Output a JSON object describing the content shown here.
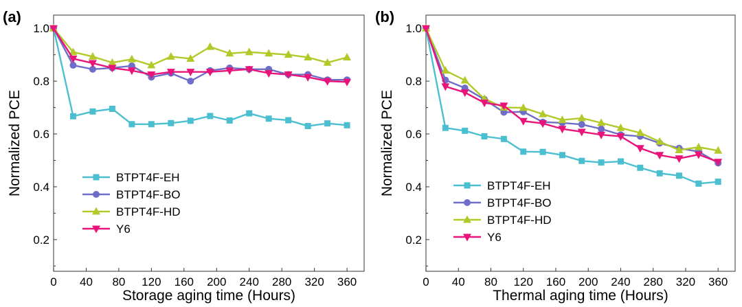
{
  "chart_data": [
    {
      "type": "line",
      "panel_label": "(a)",
      "xlabel": "Storage aging time (Hours)",
      "ylabel": "Normalized PCE",
      "xlim": [
        0,
        381
      ],
      "ylim": [
        0.08,
        1.05
      ],
      "xticks": [
        0,
        40,
        80,
        120,
        160,
        200,
        240,
        280,
        320,
        360
      ],
      "yticks": [
        0.2,
        0.4,
        0.6,
        0.8,
        1.0
      ],
      "legend_position": "bottom-left",
      "x": [
        0,
        24,
        48,
        72,
        96,
        120,
        144,
        168,
        192,
        216,
        240,
        264,
        288,
        312,
        336,
        360
      ],
      "series": [
        {
          "name": "BTPT4F-EH",
          "color": "#4bbfd0",
          "marker": "square",
          "values": [
            1.0,
            0.667,
            0.685,
            0.695,
            0.637,
            0.637,
            0.641,
            0.65,
            0.668,
            0.651,
            0.678,
            0.658,
            0.652,
            0.63,
            0.64,
            0.633
          ]
        },
        {
          "name": "BTPT4F-BO",
          "color": "#6e6ec8",
          "marker": "circle",
          "values": [
            1.0,
            0.86,
            0.845,
            0.85,
            0.858,
            0.815,
            0.83,
            0.8,
            0.84,
            0.85,
            0.845,
            0.845,
            0.825,
            0.825,
            0.805,
            0.805
          ]
        },
        {
          "name": "BTPT4F-HD",
          "color": "#b3c92a",
          "marker": "triangle-up",
          "values": [
            1.0,
            0.91,
            0.893,
            0.87,
            0.883,
            0.86,
            0.893,
            0.885,
            0.93,
            0.905,
            0.91,
            0.905,
            0.9,
            0.89,
            0.87,
            0.89
          ]
        },
        {
          "name": "Y6",
          "color": "#e8147a",
          "marker": "triangle-down",
          "values": [
            1.0,
            0.885,
            0.868,
            0.85,
            0.84,
            0.825,
            0.835,
            0.835,
            0.835,
            0.84,
            0.845,
            0.83,
            0.825,
            0.815,
            0.8,
            0.797
          ]
        }
      ]
    },
    {
      "type": "line",
      "panel_label": "(b)",
      "xlabel": "Thermal aging time (Hours)",
      "ylabel": "Normalized PCE",
      "xlim": [
        0,
        381
      ],
      "ylim": [
        0.08,
        1.05
      ],
      "xticks": [
        0,
        40,
        80,
        120,
        160,
        200,
        240,
        280,
        320,
        360
      ],
      "yticks": [
        0.2,
        0.4,
        0.6,
        0.8,
        1.0
      ],
      "legend_position": "bottom-left",
      "x": [
        0,
        24,
        48,
        72,
        96,
        120,
        144,
        168,
        192,
        216,
        240,
        264,
        288,
        312,
        336,
        360
      ],
      "series": [
        {
          "name": "BTPT4F-EH",
          "color": "#4bbfd0",
          "marker": "square",
          "values": [
            1.0,
            0.623,
            0.612,
            0.591,
            0.581,
            0.533,
            0.532,
            0.52,
            0.498,
            0.492,
            0.496,
            0.472,
            0.451,
            0.442,
            0.412,
            0.419
          ]
        },
        {
          "name": "BTPT4F-BO",
          "color": "#6e6ec8",
          "marker": "circle",
          "values": [
            1.0,
            0.804,
            0.774,
            0.731,
            0.682,
            0.684,
            0.645,
            0.642,
            0.636,
            0.619,
            0.597,
            0.591,
            0.565,
            0.546,
            0.533,
            0.49
          ]
        },
        {
          "name": "BTPT4F-HD",
          "color": "#b3c92a",
          "marker": "triangle-up",
          "values": [
            1.0,
            0.84,
            0.803,
            0.733,
            0.7,
            0.699,
            0.675,
            0.653,
            0.66,
            0.642,
            0.623,
            0.604,
            0.571,
            0.539,
            0.55,
            0.537
          ]
        },
        {
          "name": "Y6",
          "color": "#e8147a",
          "marker": "triangle-down",
          "values": [
            1.0,
            0.78,
            0.757,
            0.718,
            0.707,
            0.649,
            0.64,
            0.619,
            0.608,
            0.597,
            0.591,
            0.546,
            0.52,
            0.507,
            0.522,
            0.494
          ]
        }
      ]
    }
  ]
}
